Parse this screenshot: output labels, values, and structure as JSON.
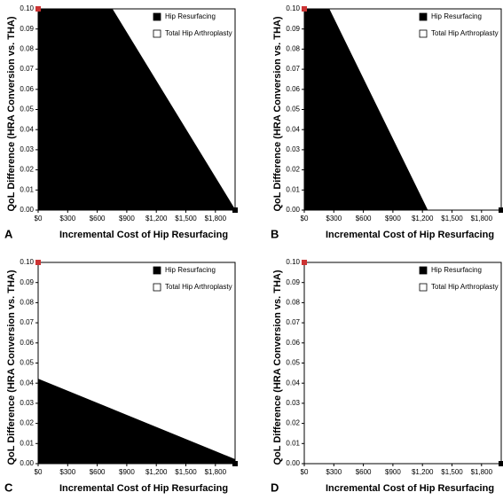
{
  "chart_data": [
    {
      "type": "area",
      "panel_label": "A",
      "xlabel": "Incremental Cost of Hip Resurfacing",
      "ylabel": "QoL Difference (HRA Conversion vs. THA)",
      "x": [
        0,
        750,
        2000
      ],
      "series": [
        {
          "name": "Hip Resurfacing",
          "color": "#000000",
          "values": [
            0.1,
            0.1,
            0
          ]
        },
        {
          "name": "Total Hip Arthroplasty",
          "color": "#ffffff"
        }
      ],
      "points": [
        {
          "x": 0,
          "y": 0.1,
          "color": "#cc3333"
        },
        {
          "x": 2000,
          "y": 0,
          "color": "#000000"
        }
      ],
      "xlim": [
        0,
        2000
      ],
      "ylim": [
        0,
        0.1
      ],
      "xticks": [
        {
          "value": 0,
          "label": "$0"
        },
        {
          "value": 300,
          "label": "$300"
        },
        {
          "value": 600,
          "label": "$600"
        },
        {
          "value": 900,
          "label": "$900"
        },
        {
          "value": 1200,
          "label": "$1,200"
        },
        {
          "value": 1500,
          "label": "$1,500"
        },
        {
          "value": 1800,
          "label": "$1,800"
        }
      ],
      "yticks": [
        {
          "value": 0,
          "label": "0.00"
        },
        0.01,
        0.02,
        0.03,
        0.04,
        0.05,
        0.06,
        0.07,
        0.08,
        0.09,
        {
          "value": 0.1,
          "label": "0.10"
        }
      ]
    },
    {
      "type": "area",
      "panel_label": "B",
      "xlabel": "Incremental Cost of Hip Resurfacing",
      "ylabel": "QoL Difference (HRA Conversion vs. THA)",
      "x": [
        0,
        250,
        1250
      ],
      "series": [
        {
          "name": "Hip Resurfacing",
          "color": "#000000",
          "values": [
            0.1,
            0.1,
            0
          ]
        },
        {
          "name": "Total Hip Arthroplasty",
          "color": "#ffffff"
        }
      ],
      "points": [
        {
          "x": 0,
          "y": 0.1,
          "color": "#cc3333"
        },
        {
          "x": 2000,
          "y": 0,
          "color": "#000000"
        }
      ],
      "xlim": [
        0,
        2000
      ],
      "ylim": [
        0,
        0.1
      ],
      "xticks": [
        {
          "value": 0,
          "label": "$0"
        },
        {
          "value": 300,
          "label": "$300"
        },
        {
          "value": 600,
          "label": "$600"
        },
        {
          "value": 900,
          "label": "$900"
        },
        {
          "value": 1200,
          "label": "$1,200"
        },
        {
          "value": 1500,
          "label": "$1,500"
        },
        {
          "value": 1800,
          "label": "$1,800"
        }
      ],
      "yticks": [
        {
          "value": 0,
          "label": "0.00"
        },
        0.01,
        0.02,
        0.03,
        0.04,
        0.05,
        0.06,
        0.07,
        0.08,
        0.09,
        {
          "value": 0.1,
          "label": "0.10"
        }
      ]
    },
    {
      "type": "area",
      "panel_label": "C",
      "xlabel": "Incremental Cost of Hip Resurfacing",
      "ylabel": "QoL Difference (HRA Conversion vs. THA)",
      "x": [
        0,
        2000
      ],
      "series": [
        {
          "name": "Hip Resurfacing",
          "color": "#000000",
          "values": [
            0.042,
            0.002
          ]
        },
        {
          "name": "Total Hip Arthroplasty",
          "color": "#ffffff"
        }
      ],
      "points": [
        {
          "x": 0,
          "y": 0.1,
          "color": "#cc3333"
        },
        {
          "x": 2000,
          "y": 0,
          "color": "#000000"
        }
      ],
      "xlim": [
        0,
        2000
      ],
      "ylim": [
        0,
        0.1
      ],
      "xticks": [
        {
          "value": 0,
          "label": "$0"
        },
        {
          "value": 300,
          "label": "$300"
        },
        {
          "value": 600,
          "label": "$600"
        },
        {
          "value": 900,
          "label": "$900"
        },
        {
          "value": 1200,
          "label": "$1,200"
        },
        {
          "value": 1500,
          "label": "$1,500"
        },
        {
          "value": 1800,
          "label": "$1,800"
        }
      ],
      "yticks": [
        {
          "value": 0,
          "label": "0.00"
        },
        0.01,
        0.02,
        0.03,
        0.04,
        0.05,
        0.06,
        0.07,
        0.08,
        0.09,
        {
          "value": 0.1,
          "label": "0.10"
        }
      ]
    },
    {
      "type": "area",
      "panel_label": "D",
      "xlabel": "Incremental Cost of Hip Resurfacing",
      "ylabel": "QoL Difference (HRA Conversion vs. THA)",
      "x": [],
      "series": [
        {
          "name": "Hip Resurfacing",
          "color": "#000000",
          "values": []
        },
        {
          "name": "Total Hip Arthroplasty",
          "color": "#ffffff"
        }
      ],
      "points": [
        {
          "x": 0,
          "y": 0.1,
          "color": "#cc3333"
        },
        {
          "x": 2000,
          "y": 0,
          "color": "#000000"
        }
      ],
      "xlim": [
        0,
        2000
      ],
      "ylim": [
        0,
        0.1
      ],
      "xticks": [
        {
          "value": 0,
          "label": "$0"
        },
        {
          "value": 300,
          "label": "$300"
        },
        {
          "value": 600,
          "label": "$600"
        },
        {
          "value": 900,
          "label": "$900"
        },
        {
          "value": 1200,
          "label": "$1,200"
        },
        {
          "value": 1500,
          "label": "$1,500"
        },
        {
          "value": 1800,
          "label": "$1,800"
        }
      ],
      "yticks": [
        {
          "value": 0,
          "label": "0.00"
        },
        0.01,
        0.02,
        0.03,
        0.04,
        0.05,
        0.06,
        0.07,
        0.08,
        0.09,
        {
          "value": 0.1,
          "label": "0.10"
        }
      ]
    }
  ]
}
